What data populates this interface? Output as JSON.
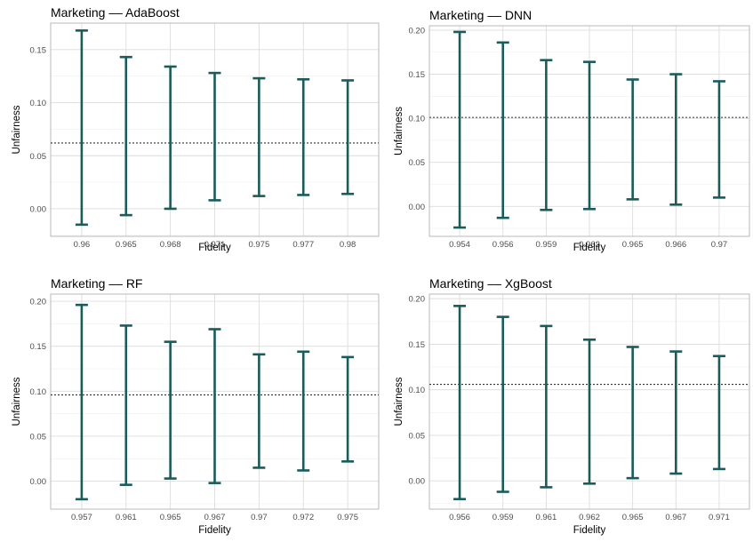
{
  "colors": {
    "errorbar": "#1a5c5a",
    "grid_major": "#dcdcdc",
    "grid_minor": "#efefef",
    "border": "#b3b3b3",
    "refline": "#333333"
  },
  "chart_data": [
    {
      "type": "errorbar",
      "title": "Marketing –– AdaBoost",
      "xlabel": "Fidelity",
      "ylabel": "Unfairness",
      "categories": [
        "0.96",
        "0.965",
        "0.968",
        "0.971",
        "0.975",
        "0.977",
        "0.98"
      ],
      "lower": [
        -0.015,
        -0.006,
        0.0,
        0.008,
        0.012,
        0.013,
        0.014
      ],
      "upper": [
        0.168,
        0.143,
        0.134,
        0.128,
        0.123,
        0.122,
        0.121
      ],
      "reference_line": 0.062,
      "yticks": [
        "0.00",
        "0.05",
        "0.10",
        "0.15"
      ],
      "ylim": [
        -0.026,
        0.175
      ],
      "grid": true
    },
    {
      "type": "errorbar",
      "title": "Marketing –– DNN",
      "xlabel": "Fidelity",
      "ylabel": "Unfairness",
      "categories": [
        "0.954",
        "0.956",
        "0.959",
        "0.962",
        "0.965",
        "0.966",
        "0.97"
      ],
      "lower": [
        -0.024,
        -0.013,
        -0.004,
        -0.003,
        0.008,
        0.002,
        0.01
      ],
      "upper": [
        0.198,
        0.186,
        0.166,
        0.164,
        0.144,
        0.15,
        0.142
      ],
      "reference_line": 0.101,
      "yticks": [
        "0.00",
        "0.05",
        "0.10",
        "0.15",
        "0.20"
      ],
      "ylim": [
        -0.034,
        0.205
      ],
      "grid": true
    },
    {
      "type": "errorbar",
      "title": "Marketing –– RF",
      "xlabel": "Fidelity",
      "ylabel": "Unfairness",
      "categories": [
        "0.957",
        "0.961",
        "0.965",
        "0.967",
        "0.97",
        "0.972",
        "0.975"
      ],
      "lower": [
        -0.02,
        -0.004,
        0.003,
        -0.002,
        0.015,
        0.012,
        0.022
      ],
      "upper": [
        0.196,
        0.173,
        0.155,
        0.169,
        0.141,
        0.144,
        0.138
      ],
      "reference_line": 0.096,
      "yticks": [
        "0.00",
        "0.05",
        "0.10",
        "0.15",
        "0.20"
      ],
      "ylim": [
        -0.031,
        0.208
      ],
      "grid": true
    },
    {
      "type": "errorbar",
      "title": "Marketing –– XgBoost",
      "xlabel": "Fidelity",
      "ylabel": "Unfairness",
      "categories": [
        "0.956",
        "0.959",
        "0.961",
        "0.962",
        "0.965",
        "0.967",
        "0.971"
      ],
      "lower": [
        -0.02,
        -0.012,
        -0.007,
        -0.003,
        0.003,
        0.008,
        0.013
      ],
      "upper": [
        0.192,
        0.18,
        0.17,
        0.155,
        0.147,
        0.142,
        0.137
      ],
      "reference_line": 0.106,
      "yticks": [
        "0.00",
        "0.05",
        "0.10",
        "0.15",
        "0.20"
      ],
      "ylim": [
        -0.031,
        0.205
      ],
      "grid": true
    }
  ]
}
